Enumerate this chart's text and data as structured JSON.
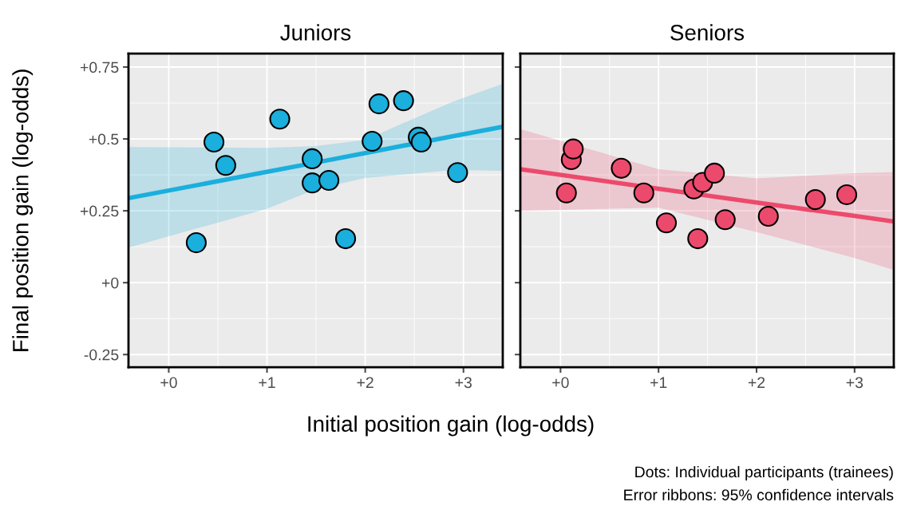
{
  "chart_data": [
    {
      "type": "scatter",
      "title": "Juniors",
      "xlabel": "Initial position gain (log-odds)",
      "ylabel": "Final position gain (log-odds)",
      "xlim": [
        -0.41,
        3.4
      ],
      "ylim": [
        -0.294,
        0.797
      ],
      "xticks": [
        {
          "value": 0,
          "label": "+0"
        },
        {
          "value": 1,
          "label": "+1"
        },
        {
          "value": 2,
          "label": "+2"
        },
        {
          "value": 3,
          "label": "+3"
        }
      ],
      "yticks": [
        {
          "value": -0.25,
          "label": "-0.25"
        },
        {
          "value": 0,
          "label": "+0"
        },
        {
          "value": 0.25,
          "label": "+0.25"
        },
        {
          "value": 0.5,
          "label": "+0.5"
        },
        {
          "value": 0.75,
          "label": "+0.75"
        }
      ],
      "grid": true,
      "series": [
        {
          "type": "line",
          "color": "#1aafdc",
          "x": [
            -0.41,
            0.99,
            1.5,
            2.0,
            2.9,
            3.4
          ],
          "values": [
            0.294,
            0.385,
            0.418,
            0.451,
            0.51,
            0.542
          ],
          "lower": [
            0.122,
            0.256,
            0.325,
            0.364,
            0.392,
            0.389
          ],
          "upper": [
            0.472,
            0.469,
            0.475,
            0.497,
            0.631,
            0.692
          ]
        },
        {
          "color": "#1aafdc",
          "marker": "circle",
          "x": [
            0.28,
            0.46,
            0.58,
            1.13,
            1.46,
            1.46,
            1.63,
            1.8,
            2.07,
            2.14,
            2.39,
            2.54,
            2.57,
            2.94
          ],
          "values": [
            0.139,
            0.489,
            0.408,
            0.569,
            0.431,
            0.347,
            0.356,
            0.153,
            0.492,
            0.622,
            0.633,
            0.506,
            0.489,
            0.383
          ]
        }
      ]
    },
    {
      "type": "scatter",
      "title": "Seniors",
      "xlim": [
        -0.41,
        3.4
      ],
      "ylim": [
        -0.294,
        0.797
      ],
      "tick_labels": "x",
      "xticks": [
        {
          "value": 0,
          "label": "+0"
        },
        {
          "value": 1,
          "label": "+1"
        },
        {
          "value": 2,
          "label": "+2"
        },
        {
          "value": 3,
          "label": "+3"
        }
      ],
      "yticks": [
        {
          "value": -0.25,
          "label": null
        },
        {
          "value": 0,
          "label": null
        },
        {
          "value": 0.25,
          "label": null
        },
        {
          "value": 0.5,
          "label": null
        },
        {
          "value": 0.75,
          "label": null
        }
      ],
      "grid": true,
      "annotations": [
        "Dots: Individual participants (trainees)",
        "Error ribbons: 95% confidence intervals"
      ],
      "series": [
        {
          "type": "line",
          "color": "#ec4a6c",
          "x": [
            -0.41,
            1.0,
            2.0,
            3.0,
            3.4
          ],
          "values": [
            0.395,
            0.327,
            0.279,
            0.232,
            0.213
          ],
          "lower": [
            0.25,
            0.261,
            0.176,
            0.086,
            0.044
          ],
          "upper": [
            0.534,
            0.395,
            0.363,
            0.381,
            0.384
          ]
        },
        {
          "color": "#ec4a6c",
          "marker": "circle",
          "x": [
            0.06,
            0.11,
            0.13,
            0.62,
            0.85,
            1.08,
            1.36,
            1.45,
            1.57,
            1.4,
            1.68,
            2.12,
            2.6,
            2.92
          ],
          "values": [
            0.312,
            0.428,
            0.465,
            0.398,
            0.312,
            0.208,
            0.326,
            0.349,
            0.381,
            0.153,
            0.219,
            0.231,
            0.289,
            0.306
          ]
        }
      ]
    }
  ]
}
